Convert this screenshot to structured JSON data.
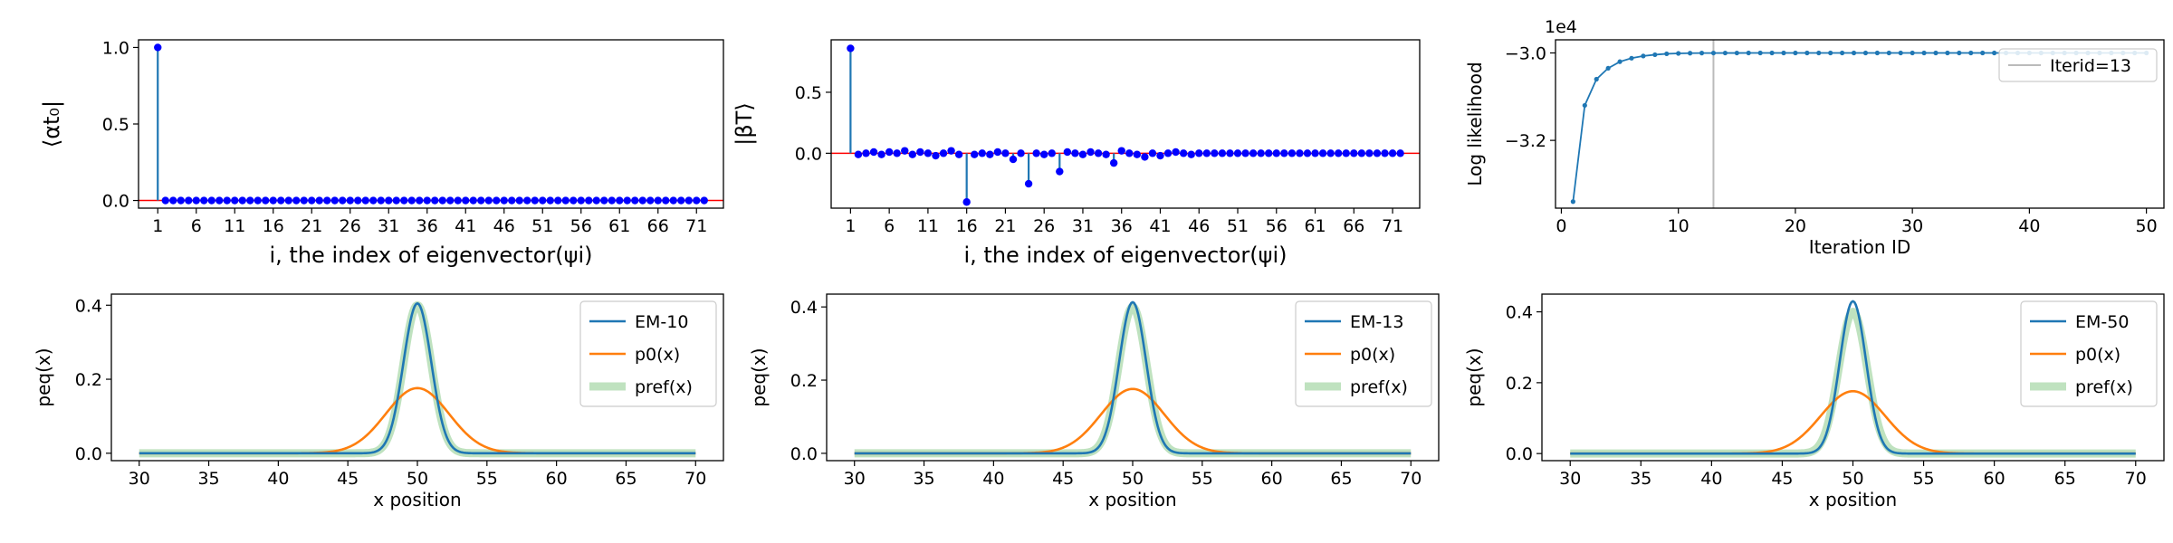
{
  "chart_data": [
    {
      "id": "alpha",
      "type": "stem",
      "title": "",
      "xlabel": "i, the index of eigenvector(ψi)",
      "ylabel": "⟨αt₀|",
      "xticks": [
        1,
        6,
        11,
        16,
        21,
        26,
        31,
        36,
        41,
        46,
        51,
        56,
        61,
        66,
        71
      ],
      "yticks": [
        0.0,
        0.5,
        1.0
      ],
      "xlim": [
        -1.5,
        74.5
      ],
      "ylim": [
        -0.05,
        1.05
      ],
      "color": "#0000ff",
      "stem_color": "#1f77b4",
      "x_start": 1,
      "values": [
        1.0,
        0,
        0,
        0,
        0,
        0,
        0,
        0,
        0,
        0,
        0,
        0,
        0,
        0,
        0,
        0,
        0,
        0,
        0,
        0,
        0,
        0,
        0,
        0,
        0,
        0,
        0,
        0,
        0,
        0,
        0,
        0,
        0,
        0,
        0,
        0,
        0,
        0,
        0,
        0,
        0,
        0,
        0,
        0,
        0,
        0,
        0,
        0,
        0,
        0,
        0,
        0,
        0,
        0,
        0,
        0,
        0,
        0,
        0,
        0,
        0,
        0,
        0,
        0,
        0,
        0,
        0,
        0,
        0,
        0,
        0,
        0
      ]
    },
    {
      "id": "beta",
      "type": "stem",
      "title": "",
      "xlabel": "i, the index of eigenvector(ψi)",
      "ylabel": "|βT⟩",
      "xticks": [
        1,
        6,
        11,
        16,
        21,
        26,
        31,
        36,
        41,
        46,
        51,
        56,
        61,
        66,
        71
      ],
      "yticks": [
        0.0,
        0.5
      ],
      "xlim": [
        -1.5,
        74.5
      ],
      "ylim": [
        -0.45,
        0.93
      ],
      "color": "#0000ff",
      "stem_color": "#1f77b4",
      "x_start": 1,
      "values": [
        0.86,
        -0.01,
        0.0,
        0.01,
        -0.01,
        0.01,
        0.0,
        0.02,
        -0.01,
        0.01,
        0.0,
        -0.02,
        0.0,
        0.02,
        -0.01,
        -0.4,
        -0.01,
        0.0,
        -0.01,
        0.01,
        0.0,
        -0.05,
        0.0,
        -0.25,
        0.0,
        -0.01,
        0.0,
        -0.15,
        0.01,
        0.0,
        -0.01,
        0.01,
        0.0,
        -0.01,
        -0.08,
        0.02,
        0.0,
        -0.01,
        -0.03,
        0.0,
        -0.02,
        0.0,
        0.01,
        0.0,
        -0.01,
        0.0,
        0.0,
        0.0,
        0.0,
        0.0,
        0.0,
        0.0,
        0.0,
        0.0,
        0.0,
        0.0,
        0.0,
        0.0,
        0.0,
        0.0,
        0.0,
        0.0,
        0.0,
        0.0,
        0.0,
        0.0,
        0.0,
        0.0,
        0.0,
        0.0,
        0.0,
        0.0
      ]
    },
    {
      "id": "loglik",
      "type": "line",
      "title": "",
      "xlabel": "Iteration ID",
      "ylabel": "Log likelihood",
      "offset_label": "1e4",
      "xticks": [
        0,
        10,
        20,
        30,
        40,
        50
      ],
      "yticks": [
        -3.2,
        -3.0
      ],
      "xlim": [
        -0.5,
        51.5
      ],
      "ylim": [
        -3.355,
        -2.97
      ],
      "color": "#1f77b4",
      "vline": {
        "x": 13,
        "label": "Iterid=13",
        "color": "#bbbbbb"
      },
      "legend": "top-right",
      "x": [
        1,
        2,
        3,
        4,
        5,
        6,
        7,
        8,
        9,
        10,
        11,
        12,
        13,
        14,
        15,
        16,
        17,
        18,
        19,
        20,
        21,
        22,
        23,
        24,
        25,
        26,
        27,
        28,
        29,
        30,
        31,
        32,
        33,
        34,
        35,
        36,
        37,
        38,
        39,
        40,
        41,
        42,
        43,
        44,
        45,
        46,
        47,
        48,
        49,
        50
      ],
      "y": [
        -3.34,
        -3.12,
        -3.06,
        -3.035,
        -3.02,
        -3.012,
        -3.007,
        -3.004,
        -3.002,
        -3.001,
        -3.0005,
        -3.0003,
        -3.0002,
        -3.0001,
        -3.0001,
        -3.0,
        -3.0,
        -3.0,
        -3.0,
        -3.0,
        -3.0,
        -3.0,
        -3.0,
        -3.0,
        -3.0,
        -3.0,
        -3.0,
        -3.0,
        -3.0,
        -3.0,
        -3.0,
        -3.0,
        -3.0,
        -3.0,
        -3.0,
        -3.0,
        -3.0,
        -3.0,
        -3.0,
        -3.0,
        -3.0,
        -3.0,
        -3.0,
        -3.0,
        -3.0,
        -3.0,
        -3.0,
        -3.0,
        -3.0,
        -3.0
      ]
    },
    {
      "id": "em10",
      "type": "line",
      "title": "",
      "xlabel": "x position",
      "ylabel": "peq(x)",
      "xticks": [
        30,
        35,
        40,
        45,
        50,
        55,
        60,
        65,
        70
      ],
      "yticks": [
        0.0,
        0.2,
        0.4
      ],
      "xlim": [
        28,
        72
      ],
      "ylim": [
        -0.02,
        0.43
      ],
      "legend": "top-right",
      "series": [
        {
          "name": "EM-10",
          "kind": "gauss",
          "mu": 50,
          "peak": 0.405,
          "sigma": 1.0,
          "color": "#1f77b4"
        },
        {
          "name": "p0(x)",
          "kind": "gauss",
          "mu": 50,
          "peak": 0.176,
          "sigma": 2.27,
          "color": "#ff7f0e"
        },
        {
          "name": "pref(x)",
          "kind": "gauss",
          "mu": 50,
          "peak": 0.4,
          "sigma": 1.0,
          "color": "#2ca02c"
        }
      ]
    },
    {
      "id": "em13",
      "type": "line",
      "title": "",
      "xlabel": "x position",
      "ylabel": "peq(x)",
      "xticks": [
        30,
        35,
        40,
        45,
        50,
        55,
        60,
        65,
        70
      ],
      "yticks": [
        0.0,
        0.2,
        0.4
      ],
      "xlim": [
        28,
        72
      ],
      "ylim": [
        -0.02,
        0.435
      ],
      "legend": "top-right",
      "series": [
        {
          "name": "EM-13",
          "kind": "gauss",
          "mu": 50,
          "peak": 0.413,
          "sigma": 0.97,
          "color": "#1f77b4"
        },
        {
          "name": "p0(x)",
          "kind": "gauss",
          "mu": 50,
          "peak": 0.176,
          "sigma": 2.27,
          "color": "#ff7f0e"
        },
        {
          "name": "pref(x)",
          "kind": "gauss",
          "mu": 50,
          "peak": 0.4,
          "sigma": 1.0,
          "color": "#2ca02c"
        }
      ]
    },
    {
      "id": "em50",
      "type": "line",
      "title": "",
      "xlabel": "x position",
      "ylabel": "peq(x)",
      "xticks": [
        30,
        35,
        40,
        45,
        50,
        55,
        60,
        65,
        70
      ],
      "yticks": [
        0.0,
        0.2,
        0.4
      ],
      "xlim": [
        28,
        72
      ],
      "ylim": [
        -0.02,
        0.45
      ],
      "legend": "top-right",
      "series": [
        {
          "name": "EM-50",
          "kind": "gauss",
          "mu": 50,
          "peak": 0.43,
          "sigma": 0.93,
          "color": "#1f77b4"
        },
        {
          "name": "p0(x)",
          "kind": "gauss",
          "mu": 50,
          "peak": 0.176,
          "sigma": 2.27,
          "color": "#ff7f0e"
        },
        {
          "name": "pref(x)",
          "kind": "gauss",
          "mu": 50,
          "peak": 0.4,
          "sigma": 1.0,
          "color": "#2ca02c"
        }
      ]
    }
  ]
}
